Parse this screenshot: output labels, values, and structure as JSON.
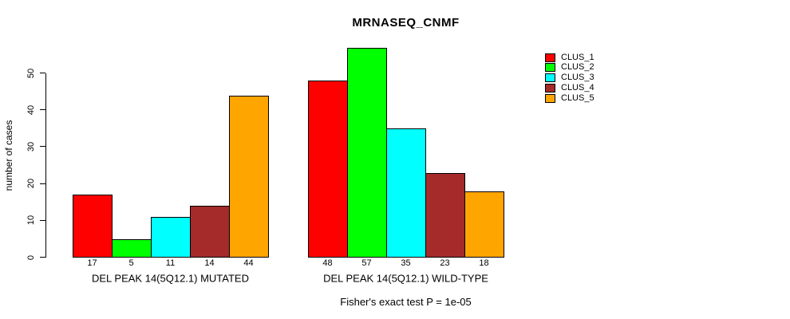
{
  "chart_data": {
    "type": "bar",
    "title": "MRNASEQ_CNMF",
    "xlabel": "",
    "ylabel": "number of cases",
    "ylim": [
      0,
      50
    ],
    "yticks": [
      0,
      10,
      20,
      30,
      40,
      50
    ],
    "grid": false,
    "legend_position": "right",
    "bar_value_labels": true,
    "categories": [
      "DEL PEAK 14(5Q12.1) MUTATED",
      "DEL PEAK 14(5Q12.1) WILD-TYPE"
    ],
    "series": [
      {
        "name": "CLUS_1",
        "color": "#FF0000",
        "values": [
          17,
          48
        ]
      },
      {
        "name": "CLUS_2",
        "color": "#00FF00",
        "values": [
          5,
          57
        ]
      },
      {
        "name": "CLUS_3",
        "color": "#00FFFF",
        "values": [
          11,
          35
        ]
      },
      {
        "name": "CLUS_4",
        "color": "#A52A2A",
        "values": [
          14,
          23
        ]
      },
      {
        "name": "CLUS_5",
        "color": "#FFA500",
        "values": [
          44,
          18
        ]
      }
    ],
    "footer": "Fisher's exact test P = 1e-05",
    "axis_color": "#000000",
    "background_color": "#FFFFFF"
  }
}
